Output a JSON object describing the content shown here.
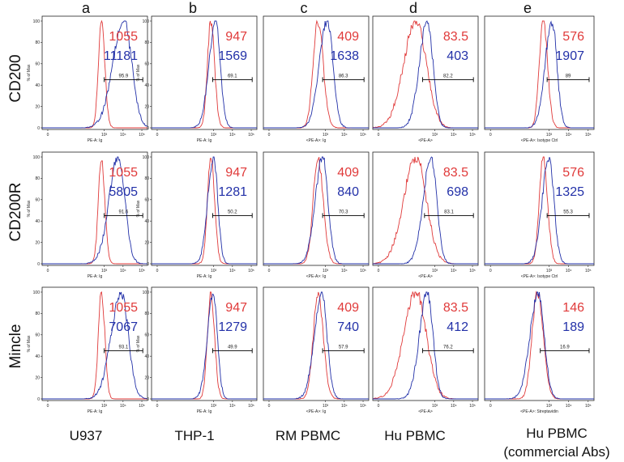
{
  "colors": {
    "isotype": "#e03a3a",
    "stain": "#2230a8",
    "axis": "#222222"
  },
  "columns": [
    {
      "letter": "a",
      "cell": "U937"
    },
    {
      "letter": "b",
      "cell": "THP-1"
    },
    {
      "letter": "c",
      "cell": "RM PBMC"
    },
    {
      "letter": "d",
      "cell": "Hu PBMC"
    },
    {
      "letter": "e",
      "cell": "Hu PBMC",
      "cell_sub": "(commercial Abs)"
    }
  ],
  "rows": [
    "CD200",
    "CD200R",
    "Mincle"
  ],
  "chart_data": [
    {
      "type": "area",
      "row": "CD200",
      "column": "a",
      "red_mfi": "1055",
      "blue_mfi": "11181",
      "gate_percent": "95.9",
      "xlabel": "PE-A: Ig",
      "ylabel": "% of Max",
      "y_ticks": [
        "0",
        "20",
        "40",
        "60",
        "80",
        "100"
      ],
      "x_ticks": [
        "0",
        "10³",
        "10⁴",
        "10⁵"
      ],
      "x_tick_pos": [
        0,
        3,
        4,
        5
      ],
      "red_peak": 2.85,
      "red_width": 0.18,
      "blue_peak": 4.05,
      "blue_width": 0.42,
      "gate": [
        3.0,
        5.05
      ]
    },
    {
      "type": "area",
      "row": "CD200",
      "column": "b",
      "red_mfi": "947",
      "blue_mfi": "1569",
      "gate_percent": "69.1",
      "xlabel": "PE-A: Ig",
      "ylabel": "% of Max",
      "y_ticks": [
        "0",
        "20",
        "40",
        "60",
        "80",
        "100"
      ],
      "x_ticks": [
        "0",
        "10³",
        "10⁴",
        "10⁵"
      ],
      "x_tick_pos": [
        0,
        3,
        4,
        5
      ],
      "red_peak": 2.85,
      "red_width": 0.2,
      "blue_peak": 3.1,
      "blue_width": 0.25,
      "gate": [
        2.95,
        5.05
      ]
    },
    {
      "type": "area",
      "row": "CD200",
      "column": "c",
      "red_mfi": "409",
      "blue_mfi": "1638",
      "gate_percent": "86.3",
      "xlabel": "<PE-A>: Ig",
      "ylabel": "",
      "y_ticks": [],
      "x_ticks": [
        "0",
        "10³",
        "10⁴",
        "10⁵"
      ],
      "x_tick_pos": [
        0,
        3,
        4,
        5
      ],
      "red_peak": 2.6,
      "red_width": 0.28,
      "blue_peak": 3.1,
      "blue_width": 0.3,
      "gate": [
        2.85,
        5.05
      ]
    },
    {
      "type": "area",
      "row": "CD200",
      "column": "d",
      "red_mfi": "83.5",
      "blue_mfi": "403",
      "gate_percent": "82.2",
      "xlabel": "<PE-A>",
      "ylabel": "",
      "y_ticks": [],
      "x_ticks": [
        "0",
        "10³",
        "10⁴",
        "10⁵"
      ],
      "x_tick_pos": [
        0,
        3,
        4,
        5
      ],
      "red_peak": 2.0,
      "red_width": 0.55,
      "blue_peak": 2.6,
      "blue_width": 0.3,
      "gate": [
        2.35,
        5.05
      ]
    },
    {
      "type": "area",
      "row": "CD200",
      "column": "e",
      "red_mfi": "576",
      "blue_mfi": "1907",
      "gate_percent": "89",
      "xlabel": "<PE-A>: Isotype Ctrl",
      "ylabel": "",
      "y_ticks": [],
      "x_ticks": [
        "0",
        "10³",
        "10⁴",
        "10⁵"
      ],
      "x_tick_pos": [
        0,
        3,
        4,
        5
      ],
      "red_peak": 2.7,
      "red_width": 0.22,
      "blue_peak": 3.15,
      "blue_width": 0.25,
      "gate": [
        2.9,
        5.05
      ]
    },
    {
      "type": "area",
      "row": "CD200R",
      "column": "a",
      "red_mfi": "1055",
      "blue_mfi": "5805",
      "gate_percent": "91.6",
      "xlabel": "PE-A: Ig",
      "ylabel": "% of Max",
      "y_ticks": [
        "0",
        "20",
        "40",
        "60",
        "80",
        "100"
      ],
      "x_ticks": [
        "0",
        "10³",
        "10⁴",
        "10⁵"
      ],
      "x_tick_pos": [
        0,
        3,
        4,
        5
      ],
      "red_peak": 2.85,
      "red_width": 0.18,
      "blue_peak": 3.75,
      "blue_width": 0.35,
      "gate": [
        3.0,
        5.05
      ]
    },
    {
      "type": "area",
      "row": "CD200R",
      "column": "b",
      "red_mfi": "947",
      "blue_mfi": "1281",
      "gate_percent": "50.2",
      "xlabel": "PE-A: Ig",
      "ylabel": "% of Max",
      "y_ticks": [
        "0",
        "20",
        "40",
        "60",
        "80",
        "100"
      ],
      "x_ticks": [
        "0",
        "10³",
        "10⁴",
        "10⁵"
      ],
      "x_tick_pos": [
        0,
        3,
        4,
        5
      ],
      "red_peak": 2.85,
      "red_width": 0.2,
      "blue_peak": 3.0,
      "blue_width": 0.22,
      "gate": [
        2.95,
        5.05
      ]
    },
    {
      "type": "area",
      "row": "CD200R",
      "column": "c",
      "red_mfi": "409",
      "blue_mfi": "840",
      "gate_percent": "70.3",
      "xlabel": "<PE-A>: Ig",
      "ylabel": "",
      "y_ticks": [],
      "x_ticks": [
        "0",
        "10³",
        "10⁴",
        "10⁵"
      ],
      "x_tick_pos": [
        0,
        3,
        4,
        5
      ],
      "red_peak": 2.6,
      "red_width": 0.28,
      "blue_peak": 2.85,
      "blue_width": 0.28,
      "gate": [
        2.85,
        5.05
      ]
    },
    {
      "type": "area",
      "row": "CD200R",
      "column": "d",
      "red_mfi": "83.5",
      "blue_mfi": "698",
      "gate_percent": "83.1",
      "xlabel": "<PE-A>",
      "ylabel": "",
      "y_ticks": [],
      "x_ticks": [
        "0",
        "10³",
        "10⁴",
        "10⁵"
      ],
      "x_tick_pos": [
        0,
        3,
        4,
        5
      ],
      "red_peak": 2.0,
      "red_width": 0.55,
      "blue_peak": 2.8,
      "blue_width": 0.3,
      "gate": [
        2.45,
        5.05
      ]
    },
    {
      "type": "area",
      "row": "CD200R",
      "column": "e",
      "red_mfi": "576",
      "blue_mfi": "1325",
      "gate_percent": "55.3",
      "xlabel": "<PE-A>: Isotype Ctrl",
      "ylabel": "",
      "y_ticks": [],
      "x_ticks": [
        "0",
        "10³",
        "10⁴",
        "10⁵"
      ],
      "x_tick_pos": [
        0,
        3,
        4,
        5
      ],
      "red_peak": 2.7,
      "red_width": 0.22,
      "blue_peak": 3.0,
      "blue_width": 0.25,
      "gate": [
        2.9,
        5.05
      ]
    },
    {
      "type": "area",
      "row": "Mincle",
      "column": "a",
      "red_mfi": "1055",
      "blue_mfi": "7067",
      "gate_percent": "93.1",
      "xlabel": "PE-A: Ig",
      "ylabel": "% of Max",
      "y_ticks": [
        "0",
        "20",
        "40",
        "60",
        "80",
        "100"
      ],
      "x_ticks": [
        "0",
        "10³",
        "10⁴",
        "10⁵"
      ],
      "x_tick_pos": [
        0,
        3,
        4,
        5
      ],
      "red_peak": 2.85,
      "red_width": 0.18,
      "blue_peak": 3.9,
      "blue_width": 0.38,
      "gate": [
        3.0,
        5.05
      ]
    },
    {
      "type": "area",
      "row": "Mincle",
      "column": "b",
      "red_mfi": "947",
      "blue_mfi": "1279",
      "gate_percent": "49.9",
      "xlabel": "PE-A: Ig",
      "ylabel": "% of Max",
      "y_ticks": [
        "0",
        "20",
        "40",
        "60",
        "80",
        "100"
      ],
      "x_ticks": [
        "0",
        "10³",
        "10⁴",
        "10⁵"
      ],
      "x_tick_pos": [
        0,
        3,
        4,
        5
      ],
      "red_peak": 2.85,
      "red_width": 0.2,
      "blue_peak": 2.98,
      "blue_width": 0.22,
      "gate": [
        2.95,
        5.05
      ]
    },
    {
      "type": "area",
      "row": "Mincle",
      "column": "c",
      "red_mfi": "409",
      "blue_mfi": "740",
      "gate_percent": "57.9",
      "xlabel": "<PE-A>: Ig",
      "ylabel": "",
      "y_ticks": [],
      "x_ticks": [
        "0",
        "10³",
        "10⁴",
        "10⁵"
      ],
      "x_tick_pos": [
        0,
        3,
        4,
        5
      ],
      "red_peak": 2.6,
      "red_width": 0.28,
      "blue_peak": 2.8,
      "blue_width": 0.28,
      "gate": [
        2.85,
        5.05
      ]
    },
    {
      "type": "area",
      "row": "Mincle",
      "column": "d",
      "red_mfi": "83.5",
      "blue_mfi": "412",
      "gate_percent": "76.2",
      "xlabel": "<PE-A>",
      "ylabel": "",
      "y_ticks": [],
      "x_ticks": [
        "0",
        "10³",
        "10⁴",
        "10⁵"
      ],
      "x_tick_pos": [
        0,
        3,
        4,
        5
      ],
      "red_peak": 2.0,
      "red_width": 0.55,
      "blue_peak": 2.6,
      "blue_width": 0.3,
      "gate": [
        2.35,
        5.05
      ]
    },
    {
      "type": "area",
      "row": "Mincle",
      "column": "e",
      "red_mfi": "146",
      "blue_mfi": "189",
      "gate_percent": "16.9",
      "xlabel": "<PE-A>: Streptavidin",
      "ylabel": "",
      "y_ticks": [],
      "x_ticks": [
        "0",
        "10³",
        "10⁴",
        "10⁵"
      ],
      "x_tick_pos": [
        0,
        3,
        4,
        5
      ],
      "red_peak": 2.4,
      "red_width": 0.3,
      "blue_peak": 2.45,
      "blue_width": 0.3,
      "gate": [
        2.55,
        5.05
      ]
    }
  ]
}
